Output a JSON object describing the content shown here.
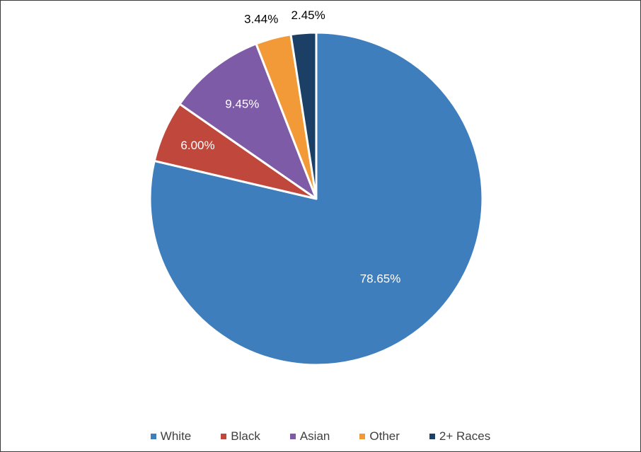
{
  "chart_data": {
    "type": "pie",
    "start_angle_deg": 0,
    "direction": "clockwise",
    "slices": [
      {
        "label": "White",
        "value": 78.65,
        "display": "78.65%",
        "color": "#3f7ebd",
        "label_color": "#ffffff"
      },
      {
        "label": "Black",
        "value": 6.0,
        "display": "6.00%",
        "color": "#c0473b",
        "label_color": "#ffffff"
      },
      {
        "label": "Asian",
        "value": 9.45,
        "display": "9.45%",
        "color": "#7d5ba6",
        "label_color": "#ffffff"
      },
      {
        "label": "Other",
        "value": 3.44,
        "display": "3.44%",
        "color": "#f39a38",
        "label_color": "#000000"
      },
      {
        "label": "2+ Races",
        "value": 2.45,
        "display": "2.45%",
        "color": "#1c3f66",
        "label_color": "#000000"
      }
    ],
    "legend_position": "bottom"
  }
}
